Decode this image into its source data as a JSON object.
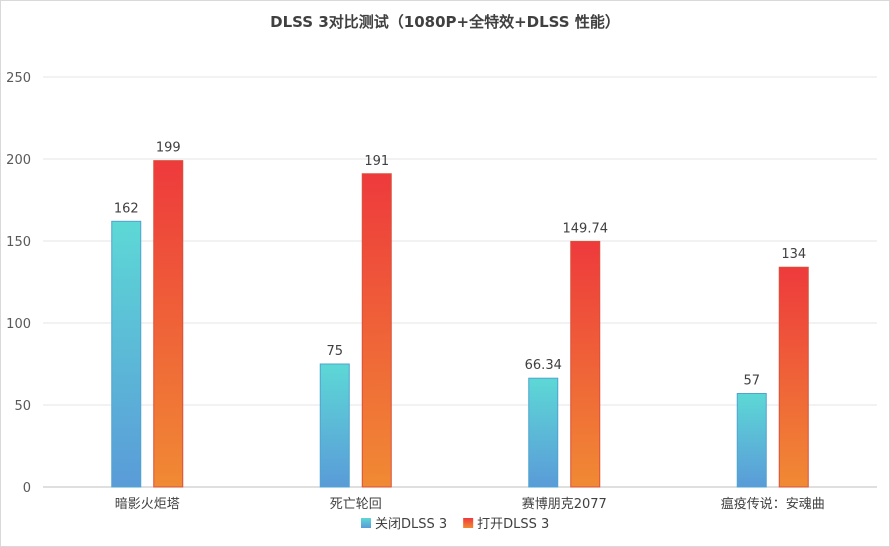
{
  "chart_data": {
    "type": "bar",
    "title": "DLSS 3对比测试（1080P+全特效+DLSS 性能）",
    "categories": [
      "暗影火炬塔",
      "死亡轮回",
      "赛博朋克2077",
      "瘟疫传说：安魂曲"
    ],
    "series": [
      {
        "name": "关闭DLSS 3",
        "values": [
          162,
          75,
          66.34,
          57
        ],
        "labels": [
          "162",
          "75",
          "66.34",
          "57"
        ],
        "color_top": "#5dd8d6",
        "color_bottom": "#5a9bd8"
      },
      {
        "name": "打开DLSS 3",
        "values": [
          199,
          191,
          149.74,
          134
        ],
        "labels": [
          "199",
          "191",
          "149.74",
          "134"
        ],
        "color_top": "#ee3a3c",
        "color_bottom": "#f08a34"
      }
    ],
    "ylim": [
      0,
      250
    ],
    "yticks": [
      0,
      50,
      100,
      150,
      200,
      250
    ],
    "grid": true,
    "legend": "bottom-center"
  }
}
